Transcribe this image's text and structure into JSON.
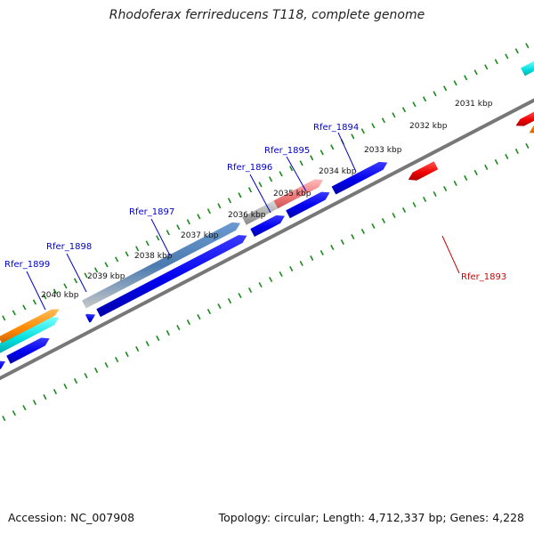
{
  "map": {
    "title": "Rhodoferax ferrireducens T118, complete genome",
    "accession": "Accession: NC_007908",
    "summary": "Topology: circular; Length: 4,712,337 bp; Genes: 4,228"
  },
  "scale_labels": [
    "2031 kbp",
    "2032 kbp",
    "2033 kbp",
    "2034 kbp",
    "2035 kbp",
    "2036 kbp",
    "2037 kbp",
    "2038 kbp",
    "2039 kbp",
    "2040 kbp"
  ],
  "gene_labels": [
    {
      "name": "Rfer_1893",
      "color": "#cc0000"
    },
    {
      "name": "Rfer_1894",
      "color": "#0000cc"
    },
    {
      "name": "Rfer_1895",
      "color": "#0000cc"
    },
    {
      "name": "Rfer_1896",
      "color": "#0000cc"
    },
    {
      "name": "Rfer_1897",
      "color": "#0000cc"
    },
    {
      "name": "Rfer_1898",
      "color": "#0000cc"
    },
    {
      "name": "Rfer_1899",
      "color": "#0000cc"
    }
  ],
  "colors": {
    "backbone": "#777777",
    "tick": "#1a8a1a",
    "cds": "#0000ee",
    "rrna": "#ee0000",
    "trna": "#00dddd",
    "misc": "#ff8800",
    "gene_grey": "#aaaaaa",
    "gene_pink": "#ee7777",
    "gene_steel": "#4a7ab0"
  }
}
